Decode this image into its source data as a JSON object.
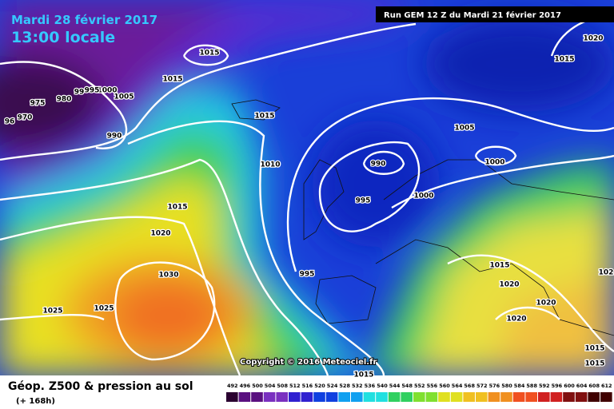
{
  "header": {
    "date": "Mardi 28 février 2017",
    "time": "13:00 locale",
    "run": "Run GEM 12 Z du Mardi 21 février 2017"
  },
  "copyright": "Copyright © 2016 Meteociel.fr",
  "footer": {
    "title": "Géop. Z500 & pression au sol",
    "lead": "(+ 168h)"
  },
  "legend": {
    "values": [
      492,
      496,
      500,
      504,
      508,
      512,
      516,
      520,
      524,
      528,
      532,
      536,
      540,
      544,
      548,
      552,
      556,
      560,
      564,
      568,
      572,
      576,
      580,
      584,
      588,
      592,
      596,
      600,
      604,
      608,
      612
    ]
  },
  "isobar_labels": [
    "1015",
    "1015",
    "1005",
    "1000",
    "995",
    "99",
    "980",
    "975",
    "970",
    "96",
    "990",
    "1015",
    "1010",
    "1015",
    "1020",
    "1030",
    "1025",
    "1025",
    "990",
    "995",
    "995",
    "1000",
    "1005",
    "1000",
    "1015",
    "1020",
    "1015",
    "1020",
    "1020",
    "1020",
    "1015",
    "1015",
    "1015",
    "102"
  ]
}
